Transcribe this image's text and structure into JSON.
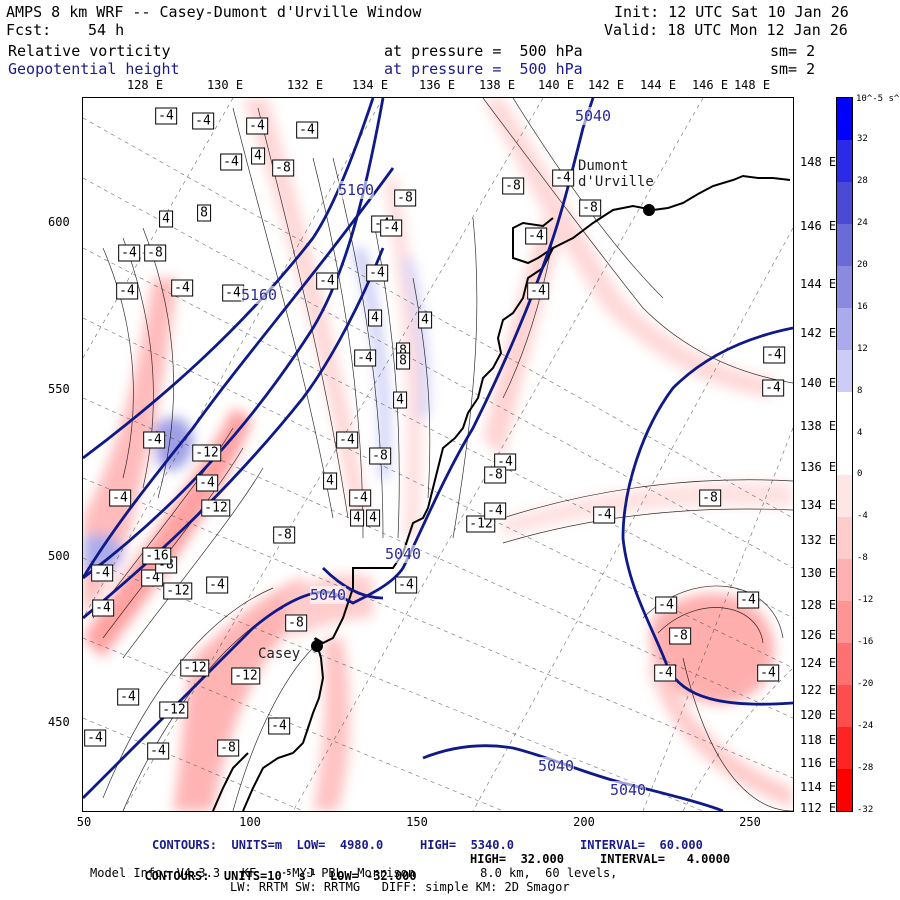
{
  "header": {
    "title": "AMPS 8 km WRF -- Casey-Dumont d'Urville Window",
    "fcst_label": "Fcst:",
    "fcst_value": "54 h",
    "init": "Init: 12 UTC Sat 10 Jan 26",
    "valid": "Valid: 18 UTC Mon 12 Jan 26",
    "field1_name": "Relative vorticity",
    "field1_level": "at pressure =  500 hPa",
    "field1_sm": "sm= 2",
    "field2_name": "Geopotential height",
    "field2_level": "at pressure =  500 hPa",
    "field2_sm": "sm= 2"
  },
  "lon_labels_top": [
    "128 E",
    "130 E",
    "132 E",
    "134 E",
    "136 E",
    "138 E",
    "140 E",
    "142 E",
    "144 E",
    "146 E",
    "148 E"
  ],
  "lat_labels_right": [
    "148 E",
    "146 E",
    "144 E",
    "142 E",
    "140 E",
    "138 E",
    "136 E",
    "134 E",
    "132 E",
    "130 E",
    "128 E",
    "126 E",
    "124 E",
    "122 E",
    "120 E",
    "118 E",
    "116 E",
    "114 E",
    "112 E"
  ],
  "y_ticks": [
    "600",
    "550",
    "500",
    "450"
  ],
  "x_ticks": [
    "50",
    "100",
    "150",
    "200",
    "250"
  ],
  "colorbar": {
    "unit": "10^-5 s^-1",
    "labels": [
      "32",
      "28",
      "24",
      "20",
      "16",
      "12",
      "8",
      "4",
      "0",
      "-4",
      "-8",
      "-12",
      "-16",
      "-20",
      "-24",
      "-28",
      "-32"
    ],
    "colors": [
      "#0000ff",
      "#2a2ae8",
      "#4a4ad6",
      "#6a6ad8",
      "#8a8ae0",
      "#aaaaec",
      "#ccccf6",
      "#ffffff",
      "#ffffff",
      "#ffe6e6",
      "#ffcccc",
      "#ffb0b0",
      "#ff9494",
      "#ff7070",
      "#ff4c4c",
      "#ff2424",
      "#ff0000"
    ]
  },
  "places": {
    "dumont": "Dumont\nd'Urville",
    "casey": "Casey"
  },
  "height_labels": [
    "5160",
    "5160",
    "5040",
    "5040",
    "5040",
    "5040",
    "5040"
  ],
  "vort_labels": [
    "-4",
    "-4",
    "-4",
    "-4",
    "-4",
    "-8",
    "8",
    "4",
    "-8",
    "-4",
    "-4",
    "-4",
    "-4",
    "4",
    "-8",
    "-4",
    "-4",
    "-4",
    "-4",
    "4",
    "4",
    "-4",
    "8",
    "8",
    "4",
    "-4",
    "-8",
    "-12",
    "-4",
    "-4",
    "-4",
    "4",
    "-12",
    "-4",
    "-4",
    "-8",
    "-4",
    "-12",
    "-4",
    "4",
    "4",
    "-16",
    "-4",
    "-8",
    "-8",
    "-4",
    "-4",
    "-12",
    "-8",
    "-4",
    "-12",
    "-12",
    "-4",
    "-4",
    "-4",
    "-8",
    "-12",
    "-4",
    "-4",
    "-8",
    "-4",
    "-4",
    "-4",
    "-4",
    "-4",
    "-8",
    "-4",
    "-4",
    "-4",
    "-8",
    "-4",
    "-8"
  ],
  "footer": {
    "line1_a": "CONTOURS:  UNITS=m  LOW=  4980.0",
    "line1_b": "HIGH=  5340.0",
    "line1_c": "INTERVAL=  60.000",
    "line2_a": "CONTOURS:  UNITS=10",
    "line2_sup": "-5",
    "line2_b": " s",
    "line2_sup2": "-1",
    "line2_c": "  LOW= -32.000",
    "line2_d": "HIGH=  32.000",
    "line2_e": "INTERVAL=   4.0000",
    "line3": "Model Info: V4.3.3   KF     MYJ PBL  Morrison         8.0 km,  60 levels,",
    "line4": "LW: RRTM SW: RRTMG   DIFF: simple KM: 2D Smagor"
  }
}
